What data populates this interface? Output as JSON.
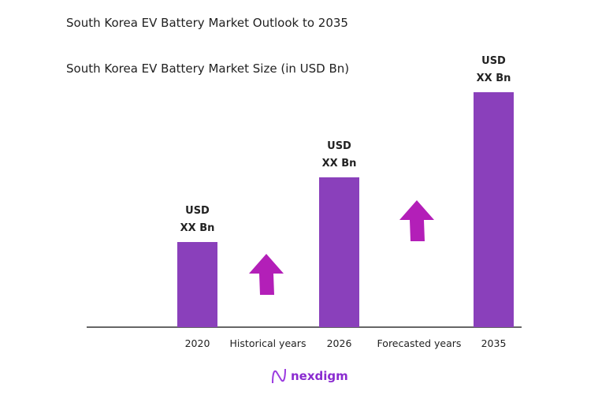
{
  "title": "South Korea EV Battery Market Outlook to 2035",
  "chart_data": {
    "type": "bar",
    "title": "South Korea EV Battery Market Size (in USD Bn)",
    "categories": [
      "2020",
      "2026",
      "2035"
    ],
    "values": [
      1.0,
      1.76,
      2.76
    ],
    "value_note_labels": [
      "USD XX Bn",
      "USD XX Bn",
      "USD XX Bn"
    ],
    "data_labels": [
      {
        "line1": "USD",
        "line2": "XX Bn"
      },
      {
        "line1": "USD",
        "line2": "XX Bn"
      },
      {
        "line1": "USD",
        "line2": "XX Bn"
      }
    ],
    "period_labels": [
      "Historical years",
      "Forecasted years"
    ],
    "grid": false,
    "bar_color": "#8a40bb",
    "arrow_color": "#b31fb8"
  },
  "logo": {
    "text": "nexdigm",
    "color": "#8a2bd0"
  }
}
